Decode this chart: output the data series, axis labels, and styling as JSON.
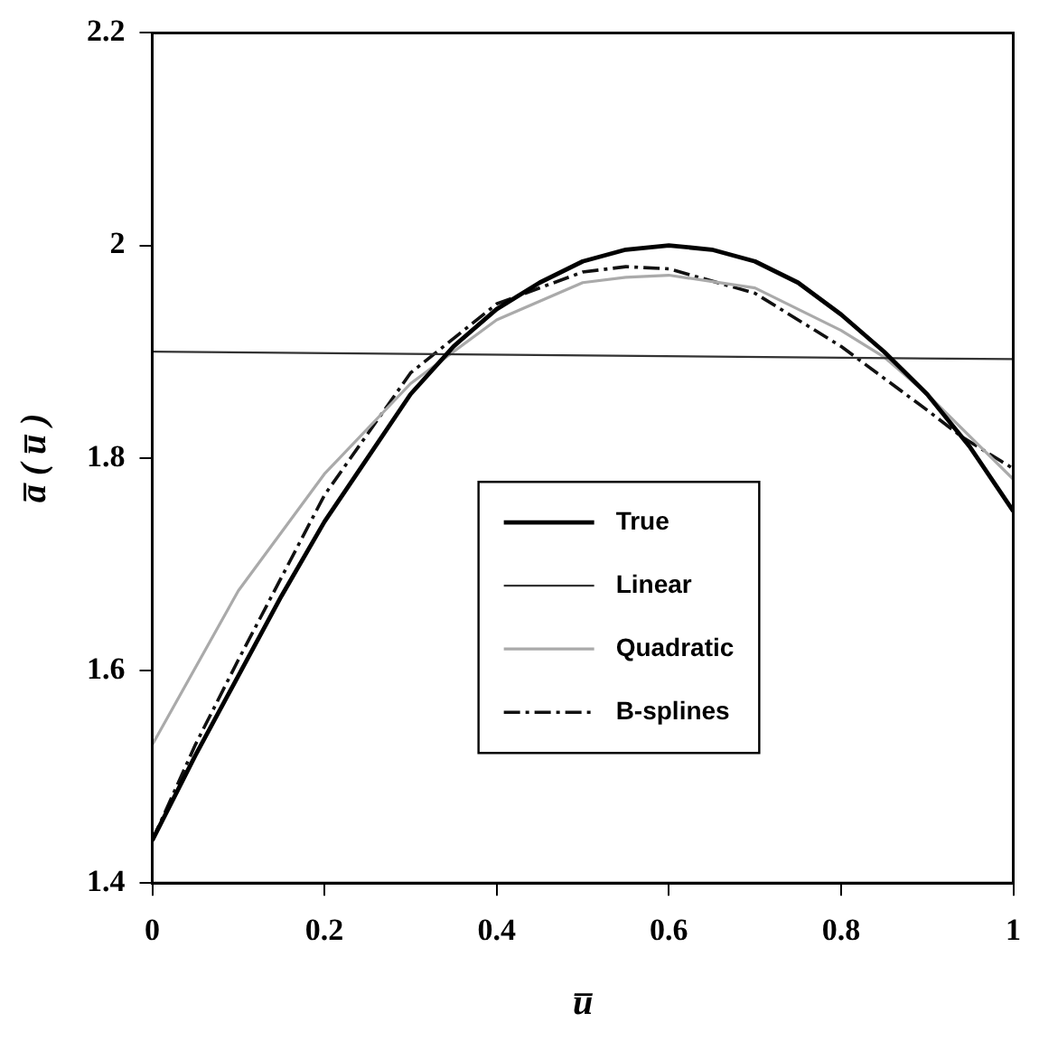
{
  "chart_data": {
    "type": "line",
    "xlabel": "u̅",
    "ylabel": "a̅ ( u̅ )",
    "x": [
      0,
      0.05,
      0.1,
      0.15,
      0.2,
      0.25,
      0.3,
      0.35,
      0.4,
      0.45,
      0.5,
      0.55,
      0.6,
      0.65,
      0.7,
      0.75,
      0.8,
      0.85,
      0.9,
      0.95,
      1
    ],
    "series": [
      {
        "name": "True",
        "color": "#000000",
        "line_style": "solid",
        "values": [
          1.44,
          1.52,
          1.595,
          1.67,
          1.74,
          1.8,
          1.86,
          1.905,
          1.94,
          1.965,
          1.985,
          1.996,
          2.0,
          1.996,
          1.985,
          1.965,
          1.935,
          1.9,
          1.86,
          1.81,
          1.75
        ]
      },
      {
        "name": "Linear",
        "color": "#333333",
        "line_style": "solid",
        "x": [
          0,
          1
        ],
        "values": [
          1.9,
          1.893
        ]
      },
      {
        "name": "Quadratic",
        "color": "#aaaaaa",
        "line_style": "solid",
        "x": [
          0,
          0.1,
          0.2,
          0.3,
          0.4,
          0.5,
          0.55,
          0.6,
          0.7,
          0.8,
          0.85,
          0.9,
          1
        ],
        "values": [
          1.53,
          1.675,
          1.785,
          1.87,
          1.93,
          1.965,
          1.97,
          1.972,
          1.96,
          1.92,
          1.895,
          1.86,
          1.78
        ]
      },
      {
        "name": "B-splines",
        "color": "#111111",
        "line_style": "dashdot",
        "x": [
          0,
          0.05,
          0.1,
          0.2,
          0.3,
          0.4,
          0.5,
          0.55,
          0.6,
          0.7,
          0.8,
          0.85,
          0.9,
          0.94,
          1
        ],
        "values": [
          1.44,
          1.53,
          1.61,
          1.765,
          1.88,
          1.945,
          1.975,
          1.98,
          1.978,
          1.955,
          1.905,
          1.875,
          1.845,
          1.82,
          1.79
        ]
      }
    ],
    "xlim": [
      0,
      1
    ],
    "xticks": [
      0,
      0.2,
      0.4,
      0.6,
      0.8,
      1
    ],
    "ylim": [
      1.4,
      2.2
    ],
    "yticks": [
      1.4,
      1.6,
      1.8,
      2,
      2.2
    ],
    "grid": false,
    "legend": "bottom center",
    "marker": "none"
  }
}
